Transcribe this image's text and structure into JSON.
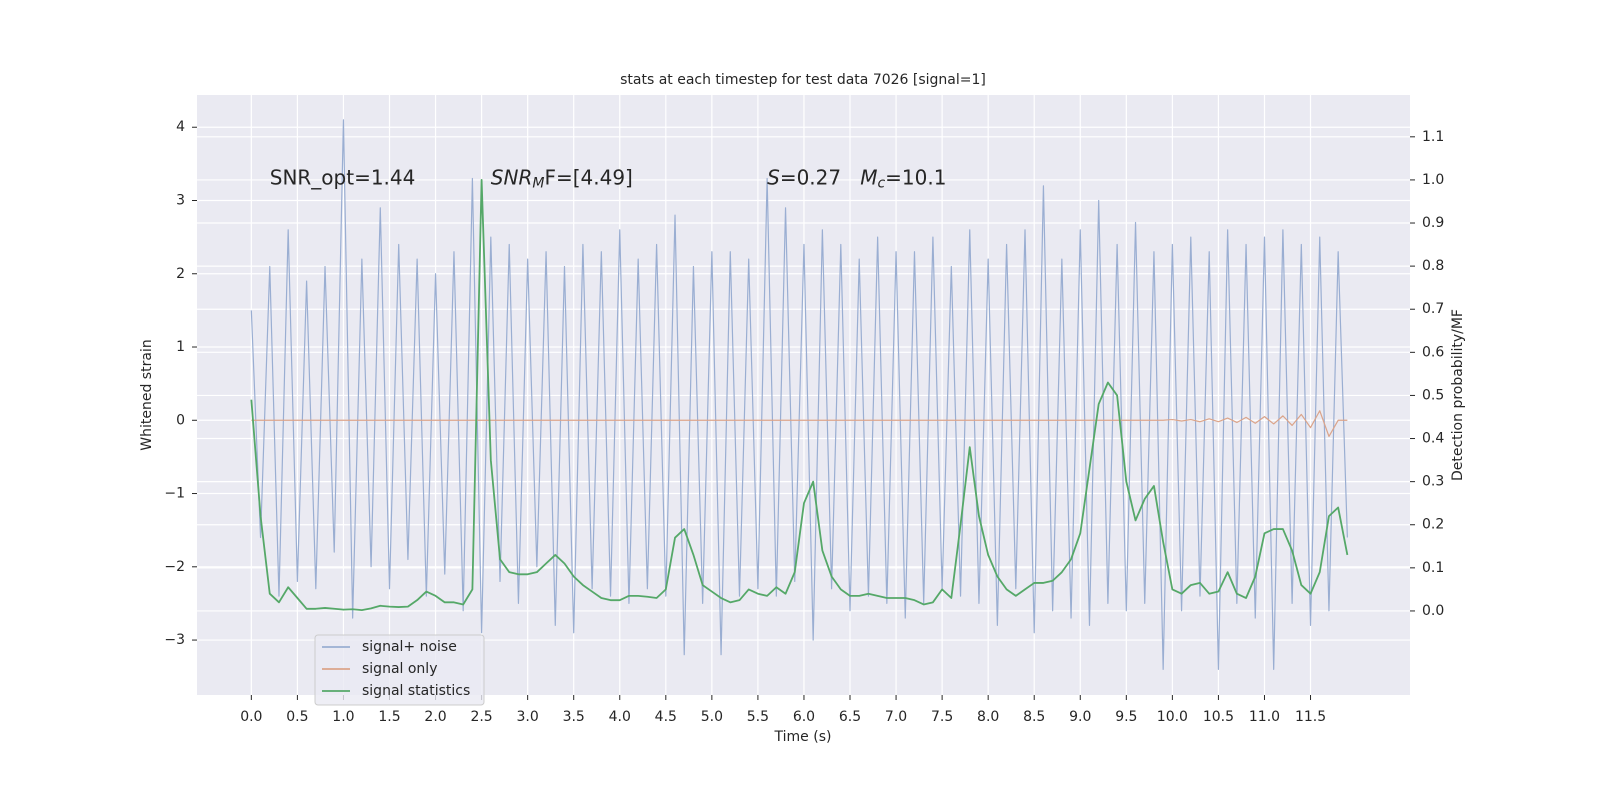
{
  "chart_data": {
    "type": "line",
    "title": "stats at each timestep for test data 7026 [signal=1]",
    "xlabel": "Time (s)",
    "ylabel": "Whitened strain",
    "y2label": "Detection probability/MF",
    "annotations": [
      {
        "parts": [
          "SNR_opt=1.44"
        ],
        "x": 0.2,
        "y": 3.3
      },
      {
        "parts": [
          "SNR",
          "M",
          "F=[4.49]"
        ],
        "x": 2.6,
        "y": 3.3
      },
      {
        "parts": [
          "S",
          "=0.27   ",
          "M",
          "c",
          "=10.1"
        ],
        "x": 5.6,
        "y": 3.3
      }
    ],
    "x": [
      0.0,
      0.1,
      0.2,
      0.3,
      0.4,
      0.5,
      0.6,
      0.7,
      0.8,
      0.9,
      1.0,
      1.1,
      1.2,
      1.3,
      1.4,
      1.5,
      1.6,
      1.7,
      1.8,
      1.9,
      2.0,
      2.1,
      2.2,
      2.3,
      2.4,
      2.5,
      2.6,
      2.7,
      2.8,
      2.9,
      3.0,
      3.1,
      3.2,
      3.3,
      3.4,
      3.5,
      3.6,
      3.7,
      3.8,
      3.9,
      4.0,
      4.1,
      4.2,
      4.3,
      4.4,
      4.5,
      4.6,
      4.7,
      4.8,
      4.9,
      5.0,
      5.1,
      5.2,
      5.3,
      5.4,
      5.5,
      5.6,
      5.7,
      5.8,
      5.9,
      6.0,
      6.1,
      6.2,
      6.3,
      6.4,
      6.5,
      6.6,
      6.7,
      6.8,
      6.9,
      7.0,
      7.1,
      7.2,
      7.3,
      7.4,
      7.5,
      7.6,
      7.7,
      7.8,
      7.9,
      8.0,
      8.1,
      8.2,
      8.3,
      8.4,
      8.5,
      8.6,
      8.7,
      8.8,
      8.9,
      9.0,
      9.1,
      9.2,
      9.3,
      9.4,
      9.5,
      9.6,
      9.7,
      9.8,
      9.9,
      10.0,
      10.1,
      10.2,
      10.3,
      10.4,
      10.5,
      10.6,
      10.7,
      10.8,
      10.9,
      11.0,
      11.1,
      11.2,
      11.3,
      11.4,
      11.5,
      11.6,
      11.7,
      11.8,
      11.9
    ],
    "series": [
      {
        "name": "signal+ noise",
        "color": "#9aaed2",
        "values": [
          1.5,
          -1.6,
          2.1,
          -2.4,
          2.6,
          -2.2,
          1.9,
          -2.3,
          2.1,
          -1.8,
          4.1,
          -2.7,
          2.2,
          -2.0,
          2.9,
          -2.3,
          2.4,
          -1.9,
          2.2,
          -2.4,
          2.0,
          -2.1,
          2.3,
          -2.6,
          3.3,
          -2.9,
          2.5,
          -2.2,
          2.4,
          -2.5,
          2.2,
          -2.0,
          2.3,
          -2.8,
          2.1,
          -2.9,
          2.4,
          -2.3,
          2.3,
          -2.4,
          2.6,
          -2.5,
          2.2,
          -2.3,
          2.4,
          -2.4,
          2.8,
          -3.2,
          2.1,
          -2.5,
          2.3,
          -3.2,
          2.3,
          -2.4,
          2.2,
          -2.3,
          3.3,
          -2.4,
          2.9,
          -2.2,
          2.4,
          -3.0,
          2.6,
          -2.3,
          2.4,
          -2.6,
          2.2,
          -2.4,
          2.5,
          -2.5,
          2.3,
          -2.7,
          2.3,
          -2.5,
          2.5,
          -2.3,
          2.1,
          -2.4,
          2.6,
          -2.5,
          2.2,
          -2.8,
          2.4,
          -2.3,
          2.6,
          -2.9,
          3.2,
          -2.6,
          2.2,
          -2.7,
          2.6,
          -2.8,
          3.0,
          -2.5,
          2.4,
          -2.6,
          2.7,
          -2.5,
          2.3,
          -3.4,
          2.4,
          -2.6,
          2.5,
          -2.4,
          2.3,
          -3.4,
          2.6,
          -2.5,
          2.4,
          -2.7,
          2.5,
          -3.4,
          2.6,
          -2.5,
          2.4,
          -2.8,
          2.5,
          -2.6,
          2.3,
          -1.6
        ]
      },
      {
        "name": "signal only",
        "color": "#dba48a",
        "values": [
          0,
          0,
          0,
          0,
          0,
          0,
          0,
          0,
          0,
          0,
          0,
          0,
          0,
          0,
          0,
          0,
          0,
          0,
          0,
          0,
          0,
          0,
          0,
          0,
          0,
          0,
          0,
          0,
          0,
          0,
          0,
          0,
          0,
          0,
          0,
          0,
          0,
          0,
          0,
          0,
          0,
          0,
          0,
          0,
          0,
          0,
          0,
          0,
          0,
          0,
          0,
          0,
          0,
          0,
          0,
          0,
          0,
          0,
          0,
          0,
          0,
          0,
          0,
          0,
          0,
          0,
          0,
          0,
          0,
          0,
          0,
          0,
          0,
          0,
          0,
          0,
          0,
          0,
          0,
          0,
          0,
          0,
          0,
          0,
          0,
          0,
          0,
          0,
          0,
          0,
          0,
          0,
          0,
          0,
          0,
          0,
          0,
          0,
          0,
          0,
          0.01,
          -0.01,
          0.01,
          -0.02,
          0.02,
          -0.02,
          0.03,
          -0.03,
          0.04,
          -0.04,
          0.05,
          -0.05,
          0.06,
          -0.07,
          0.08,
          -0.1,
          0.13,
          -0.22,
          0,
          0
        ]
      },
      {
        "name": "signal statistics",
        "color": "#55a868",
        "axis": "y2",
        "values": [
          0.49,
          0.22,
          0.04,
          0.02,
          0.055,
          0.03,
          0.005,
          0.005,
          0.007,
          0.005,
          0.003,
          0.004,
          0.002,
          0.006,
          0.012,
          0.01,
          0.009,
          0.01,
          0.025,
          0.045,
          0.035,
          0.02,
          0.02,
          0.015,
          0.05,
          1.0,
          0.35,
          0.12,
          0.09,
          0.085,
          0.085,
          0.09,
          0.11,
          0.13,
          0.11,
          0.08,
          0.06,
          0.045,
          0.03,
          0.025,
          0.025,
          0.035,
          0.035,
          0.033,
          0.03,
          0.05,
          0.17,
          0.19,
          0.13,
          0.06,
          0.045,
          0.03,
          0.02,
          0.025,
          0.05,
          0.04,
          0.035,
          0.055,
          0.04,
          0.09,
          0.25,
          0.3,
          0.14,
          0.08,
          0.05,
          0.035,
          0.035,
          0.04,
          0.035,
          0.03,
          0.03,
          0.03,
          0.025,
          0.015,
          0.02,
          0.05,
          0.03,
          0.2,
          0.38,
          0.22,
          0.13,
          0.08,
          0.05,
          0.035,
          0.05,
          0.065,
          0.065,
          0.07,
          0.09,
          0.12,
          0.18,
          0.33,
          0.48,
          0.53,
          0.5,
          0.3,
          0.21,
          0.26,
          0.29,
          0.16,
          0.05,
          0.04,
          0.06,
          0.065,
          0.04,
          0.045,
          0.09,
          0.04,
          0.03,
          0.08,
          0.18,
          0.19,
          0.19,
          0.14,
          0.06,
          0.04,
          0.09,
          0.22,
          0.24,
          0.13
        ]
      }
    ],
    "xlim": [
      -0.59,
      12.58
    ],
    "ylim": [
      -3.75,
      4.44
    ],
    "y2lim": [
      -0.195,
      1.197
    ],
    "xticks": [
      {
        "value": 0,
        "label": "0.0"
      },
      {
        "value": 0.5,
        "label": "0.5"
      },
      {
        "value": 1,
        "label": "1.0"
      },
      {
        "value": 1.5,
        "label": "1.5"
      },
      {
        "value": 2,
        "label": "2.0"
      },
      {
        "value": 2.5,
        "label": "2.5"
      },
      {
        "value": 3,
        "label": "3.0"
      },
      {
        "value": 3.5,
        "label": "3.5"
      },
      {
        "value": 4,
        "label": "4.0"
      },
      {
        "value": 4.5,
        "label": "4.5"
      },
      {
        "value": 5,
        "label": "5.0"
      },
      {
        "value": 5.5,
        "label": "5.5"
      },
      {
        "value": 6,
        "label": "6.0"
      },
      {
        "value": 6.5,
        "label": "6.5"
      },
      {
        "value": 7,
        "label": "7.0"
      },
      {
        "value": 7.5,
        "label": "7.5"
      },
      {
        "value": 8,
        "label": "8.0"
      },
      {
        "value": 8.5,
        "label": "8.5"
      },
      {
        "value": 9,
        "label": "9.0"
      },
      {
        "value": 9.5,
        "label": "9.5"
      },
      {
        "value": 10,
        "label": "10.0"
      },
      {
        "value": 10.5,
        "label": "10.5"
      },
      {
        "value": 11,
        "label": "11.0"
      },
      {
        "value": 11.5,
        "label": "11.5"
      }
    ],
    "yticks": [
      {
        "value": -3,
        "label": "−3"
      },
      {
        "value": -2,
        "label": "−2"
      },
      {
        "value": -1,
        "label": "−1"
      },
      0,
      1,
      2,
      3,
      4
    ],
    "y2ticks": [
      {
        "value": 0,
        "label": "0.0"
      },
      {
        "value": 0.1,
        "label": "0.1"
      },
      {
        "value": 0.2,
        "label": "0.2"
      },
      {
        "value": 0.3,
        "label": "0.3"
      },
      {
        "value": 0.4,
        "label": "0.4"
      },
      {
        "value": 0.5,
        "label": "0.5"
      },
      {
        "value": 0.6,
        "label": "0.6"
      },
      {
        "value": 0.7,
        "label": "0.7"
      },
      {
        "value": 0.8,
        "label": "0.8"
      },
      {
        "value": 0.9,
        "label": "0.9"
      },
      {
        "value": 1.0,
        "label": "1.0"
      },
      {
        "value": 1.1,
        "label": "1.1"
      }
    ],
    "grid": true,
    "legend": "lower left"
  }
}
